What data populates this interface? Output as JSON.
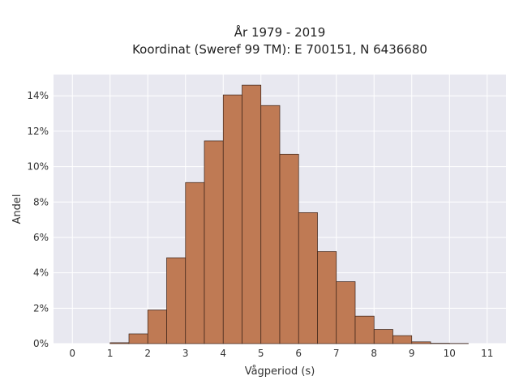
{
  "chart_data": {
    "type": "bar",
    "title_lines": [
      "År 1979 - 2019",
      "Koordinat (Sweref 99 TM): E 700151, N 6436680"
    ],
    "xlabel": "Vågperiod (s)",
    "ylabel": "Andel",
    "x_ticks": [
      "0",
      "1",
      "2",
      "3",
      "4",
      "5",
      "6",
      "7",
      "8",
      "9",
      "10",
      "11"
    ],
    "y_ticks": [
      "0%",
      "2%",
      "4%",
      "6%",
      "8%",
      "10%",
      "12%",
      "14%"
    ],
    "xlim": [
      -0.5,
      11.5
    ],
    "ylim": [
      0,
      15.2
    ],
    "bin_width": 0.5,
    "bins": [
      {
        "x0": 1.0,
        "value": 0.05
      },
      {
        "x0": 1.5,
        "value": 0.55
      },
      {
        "x0": 2.0,
        "value": 1.9
      },
      {
        "x0": 2.5,
        "value": 4.85
      },
      {
        "x0": 3.0,
        "value": 9.1
      },
      {
        "x0": 3.5,
        "value": 11.45
      },
      {
        "x0": 4.0,
        "value": 14.05
      },
      {
        "x0": 4.5,
        "value": 14.6
      },
      {
        "x0": 5.0,
        "value": 13.45
      },
      {
        "x0": 5.5,
        "value": 10.7
      },
      {
        "x0": 6.0,
        "value": 7.4
      },
      {
        "x0": 6.5,
        "value": 5.2
      },
      {
        "x0": 7.0,
        "value": 3.5
      },
      {
        "x0": 7.5,
        "value": 1.55
      },
      {
        "x0": 8.0,
        "value": 0.8
      },
      {
        "x0": 8.5,
        "value": 0.45
      },
      {
        "x0": 9.0,
        "value": 0.1
      },
      {
        "x0": 9.5,
        "value": 0.02
      },
      {
        "x0": 10.0,
        "value": 0.01
      }
    ],
    "bar_color": "#bf7a54",
    "bar_edge_color": "#3a2218",
    "plot_bg": "#e8e8f0",
    "grid": true,
    "legend": "none"
  }
}
